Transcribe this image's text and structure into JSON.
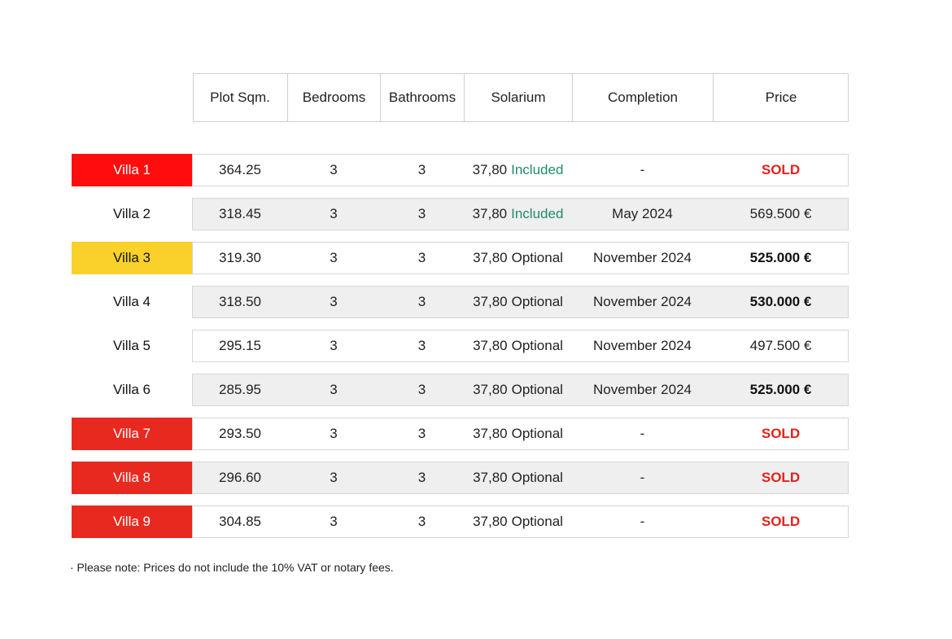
{
  "table": {
    "header": [
      "Plot Sqm.",
      "Bedrooms",
      "Bathrooms",
      "Solarium",
      "Completion",
      "Price"
    ],
    "rows": [
      {
        "name": "Villa 1",
        "color": "#ff0d0d",
        "plot": "364.25",
        "bedrooms": "3",
        "bathrooms": "3",
        "solarium": "37,80",
        "option": "Included",
        "option_color": "#1f8a6e",
        "completion": "-",
        "price": "SOLD",
        "price_color": "#e2231a"
      },
      {
        "name": "Villa 2",
        "color": "#ffffff",
        "plot": "318.45",
        "bedrooms": "3",
        "bathrooms": "3",
        "solarium": "37,80",
        "option": "Included",
        "option_color": "#1f8a6e",
        "completion": "May 2024",
        "price": "569.500 €",
        "price_color": "#222222"
      },
      {
        "name": "Villa 3",
        "color": "#f9d12a",
        "plot": "319.30",
        "bedrooms": "3",
        "bathrooms": "3",
        "solarium": "37,80",
        "option": "Optional",
        "option_color": "#222222",
        "completion": "November 2024",
        "price": "525.000 €",
        "price_color": "#111111"
      },
      {
        "name": "Villa 4",
        "color": "#ffffff",
        "plot": "318.50",
        "bedrooms": "3",
        "bathrooms": "3",
        "solarium": "37,80",
        "option": "Optional",
        "option_color": "#222222",
        "completion": "November 2024",
        "price": "530.000 €",
        "price_color": "#111111"
      },
      {
        "name": "Villa 5",
        "color": "#ffffff",
        "plot": "295.15",
        "bedrooms": "3",
        "bathrooms": "3",
        "solarium": "37,80",
        "option": "Optional",
        "option_color": "#222222",
        "completion": "November 2024",
        "price": "497.500 €",
        "price_color": "#222222"
      },
      {
        "name": "Villa 6",
        "color": "#ffffff",
        "plot": "285.95",
        "bedrooms": "3",
        "bathrooms": "3",
        "solarium": "37,80",
        "option": "Optional",
        "option_color": "#222222",
        "completion": "November 2024",
        "price": "525.000 €",
        "price_color": "#111111"
      },
      {
        "name": "Villa 7",
        "color": "#e8291f",
        "plot": "293.50",
        "bedrooms": "3",
        "bathrooms": "3",
        "solarium": "37,80",
        "option": "Optional",
        "option_color": "#222222",
        "completion": "-",
        "price": "SOLD",
        "price_color": "#e2231a"
      },
      {
        "name": "Villa 8",
        "color": "#e8291f",
        "plot": "296.60",
        "bedrooms": "3",
        "bathrooms": "3",
        "solarium": "37,80",
        "option": "Optional",
        "option_color": "#222222",
        "completion": "-",
        "price": "SOLD",
        "price_color": "#e2231a"
      },
      {
        "name": "Villa 9",
        "color": "#e8291f",
        "plot": "304.85",
        "bedrooms": "3",
        "bathrooms": "3",
        "solarium": "37,80",
        "option": "Optional",
        "option_color": "#222222",
        "completion": "-",
        "price": "SOLD",
        "price_color": "#e2231a"
      }
    ],
    "note": "· Please note: Prices do not include the 10% VAT or notary fees."
  }
}
